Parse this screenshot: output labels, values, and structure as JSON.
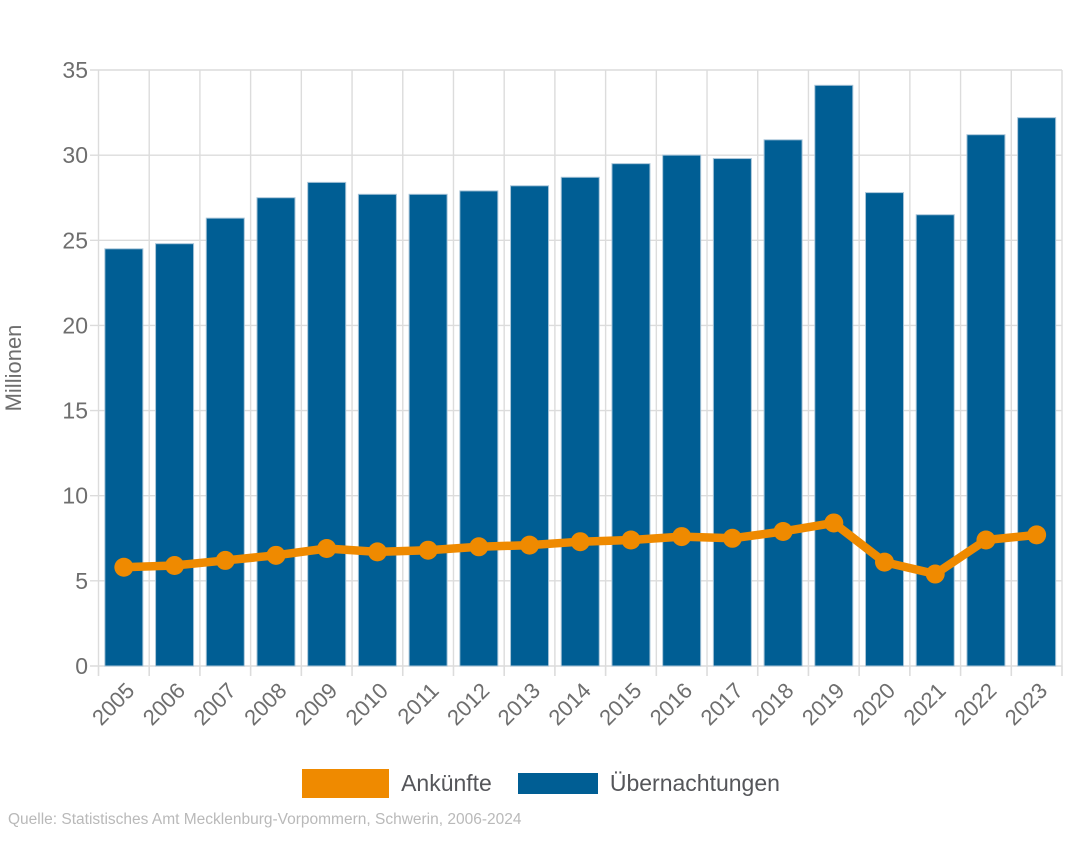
{
  "chart_data": {
    "type": "bar+line",
    "title": "",
    "categories": [
      "2005",
      "2006",
      "2007",
      "2008",
      "2009",
      "2010",
      "2011",
      "2012",
      "2013",
      "2014",
      "2015",
      "2016",
      "2017",
      "2018",
      "2019",
      "2020",
      "2021",
      "2022",
      "2023"
    ],
    "series": [
      {
        "name": "Ankünfte",
        "type": "line",
        "color": "#EF8A00",
        "values": [
          5.8,
          5.9,
          6.2,
          6.5,
          6.9,
          6.7,
          6.8,
          7.0,
          7.1,
          7.3,
          7.4,
          7.6,
          7.5,
          7.9,
          8.4,
          6.1,
          5.4,
          7.4,
          7.7
        ]
      },
      {
        "name": "Übernachtungen",
        "type": "bar",
        "color": "#005E94",
        "values": [
          24.5,
          24.8,
          26.3,
          27.5,
          28.4,
          27.7,
          27.7,
          27.9,
          28.2,
          28.7,
          29.5,
          30.0,
          29.8,
          30.9,
          34.1,
          27.8,
          26.5,
          31.2,
          32.2
        ]
      }
    ],
    "xlabel": "",
    "ylabel": "Millionen",
    "ylim": [
      0,
      35
    ],
    "yticks": [
      0,
      5,
      10,
      15,
      20,
      25,
      30,
      35
    ],
    "grid": true,
    "legend_position": "bottom"
  },
  "legend": {
    "items": [
      {
        "label": "Ankünfte",
        "color": "#EF8A00",
        "swatch": "line-swatch"
      },
      {
        "label": "Übernachtungen",
        "color": "#005E94",
        "swatch": "bar-swatch"
      }
    ]
  },
  "source_note": "Quelle: Statistisches Amt Mecklenburg-Vorpommern, Schwerin, 2006-2024",
  "colors": {
    "background": "#FFFFFF",
    "bar_fill": "#005E94",
    "bar_edge": "#A7C4D8",
    "line_stroke": "#EF8A00",
    "grid_line": "#DCDCDC",
    "axis_text": "#6E6E6E",
    "legend_text": "#55565A",
    "source_text": "#B9B9B9"
  }
}
